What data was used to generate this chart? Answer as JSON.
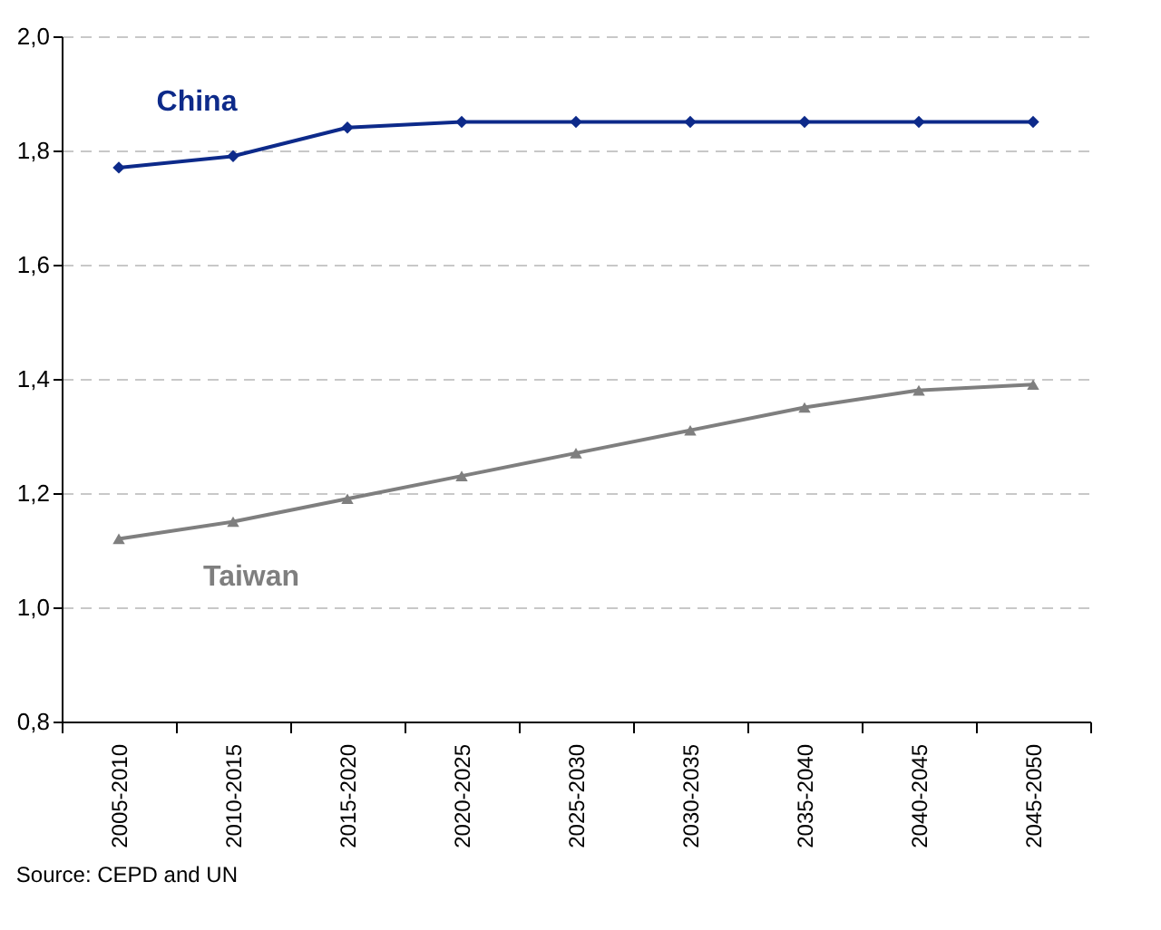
{
  "chart_data": {
    "type": "line",
    "categories": [
      "2005-2010",
      "2010-2015",
      "2015-2020",
      "2020-2025",
      "2025-2030",
      "2030-2035",
      "2035-2040",
      "2040-2045",
      "2045-2050"
    ],
    "series": [
      {
        "name": "China",
        "color": "#0d2a8a",
        "marker": "diamond",
        "values": [
          1.77,
          1.79,
          1.84,
          1.85,
          1.85,
          1.85,
          1.85,
          1.85,
          1.85
        ]
      },
      {
        "name": "Taiwan",
        "color": "#7f7f7f",
        "marker": "triangle",
        "values": [
          1.12,
          1.15,
          1.19,
          1.23,
          1.27,
          1.31,
          1.35,
          1.38,
          1.39
        ]
      }
    ],
    "ylim": [
      0.8,
      2.0
    ],
    "yticks": [
      {
        "value": 0.8,
        "label": "0,8"
      },
      {
        "value": 1.0,
        "label": "1,0"
      },
      {
        "value": 1.2,
        "label": "1,2"
      },
      {
        "value": 1.4,
        "label": "1,4"
      },
      {
        "value": 1.6,
        "label": "1,6"
      },
      {
        "value": 1.8,
        "label": "1,8"
      },
      {
        "value": 2.0,
        "label": "2,0"
      }
    ],
    "grid": "y",
    "line_style": "solid",
    "annotations": [
      "Source: CEPD and UN"
    ]
  }
}
